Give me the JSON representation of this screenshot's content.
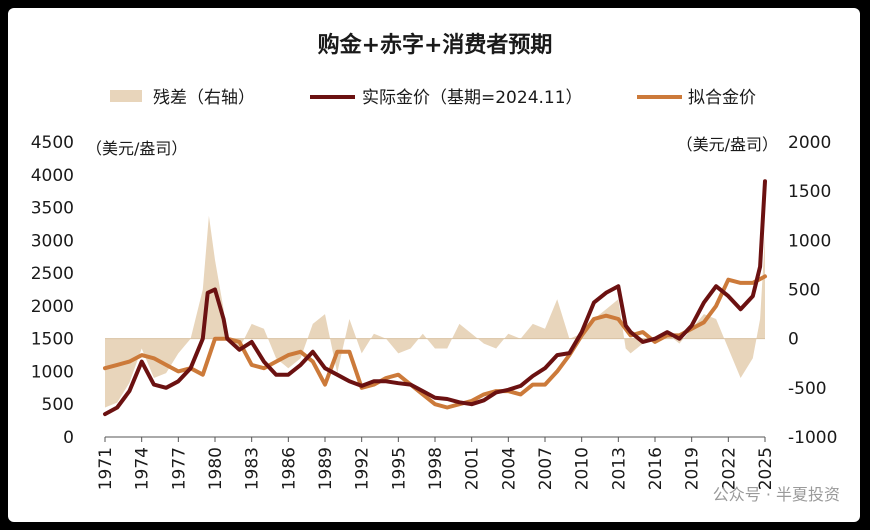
{
  "chart_data": {
    "type": "line",
    "title": "购金+赤字+消费者预期",
    "left_unit": "（美元/盎司）",
    "right_unit": "（美元/盎司）",
    "left_axis": {
      "min": 0,
      "max": 4500,
      "ticks": [
        "0",
        "500",
        "1000",
        "1500",
        "2000",
        "2500",
        "3000",
        "3500",
        "4000",
        "4500"
      ]
    },
    "right_axis": {
      "min": -1000,
      "max": 2000,
      "ticks": [
        "-1000",
        "-500",
        "0",
        "500",
        "1000",
        "1500",
        "2000"
      ]
    },
    "x_ticks": [
      "1971",
      "1974",
      "1977",
      "1980",
      "1983",
      "1986",
      "1989",
      "1992",
      "1995",
      "1998",
      "2001",
      "2004",
      "2007",
      "2010",
      "2013",
      "2016",
      "2019",
      "2022",
      "2025"
    ],
    "legend": [
      {
        "name": "残差（右轴）",
        "color": "#e8d5bb",
        "kind": "area"
      },
      {
        "name": "实际金价（基期=2024.11）",
        "color": "#6b1111",
        "kind": "line"
      },
      {
        "name": "拟合金价",
        "color": "#cc7a3a",
        "kind": "line"
      }
    ],
    "series": [
      {
        "name": "实际金价（基期=2024.11）",
        "axis": "left",
        "points": [
          [
            1971,
            350
          ],
          [
            1972,
            450
          ],
          [
            1973,
            700
          ],
          [
            1974,
            1150
          ],
          [
            1975,
            800
          ],
          [
            1976,
            750
          ],
          [
            1977,
            850
          ],
          [
            1978,
            1050
          ],
          [
            1979,
            1500
          ],
          [
            1979.4,
            2200
          ],
          [
            1980,
            2250
          ],
          [
            1980.7,
            1800
          ],
          [
            1981,
            1500
          ],
          [
            1982,
            1330
          ],
          [
            1983,
            1450
          ],
          [
            1984,
            1150
          ],
          [
            1985,
            950
          ],
          [
            1986,
            950
          ],
          [
            1987,
            1100
          ],
          [
            1988,
            1300
          ],
          [
            1989,
            1050
          ],
          [
            1990,
            950
          ],
          [
            1991,
            850
          ],
          [
            1992,
            780
          ],
          [
            1993,
            850
          ],
          [
            1994,
            850
          ],
          [
            1995,
            820
          ],
          [
            1996,
            800
          ],
          [
            1997,
            700
          ],
          [
            1998,
            600
          ],
          [
            1999,
            580
          ],
          [
            2000,
            530
          ],
          [
            2001,
            500
          ],
          [
            2002,
            560
          ],
          [
            2003,
            680
          ],
          [
            2004,
            720
          ],
          [
            2005,
            780
          ],
          [
            2006,
            930
          ],
          [
            2007,
            1050
          ],
          [
            2008,
            1250
          ],
          [
            2009,
            1280
          ],
          [
            2010,
            1600
          ],
          [
            2011,
            2050
          ],
          [
            2012,
            2200
          ],
          [
            2013,
            2300
          ],
          [
            2013.6,
            1700
          ],
          [
            2014,
            1600
          ],
          [
            2015,
            1450
          ],
          [
            2016,
            1500
          ],
          [
            2017,
            1600
          ],
          [
            2018,
            1500
          ],
          [
            2019,
            1700
          ],
          [
            2020,
            2050
          ],
          [
            2021,
            2300
          ],
          [
            2022,
            2150
          ],
          [
            2023,
            1950
          ],
          [
            2024,
            2150
          ],
          [
            2024.6,
            2600
          ],
          [
            2025,
            3900
          ]
        ]
      },
      {
        "name": "拟合金价",
        "axis": "left",
        "points": [
          [
            1971,
            1050
          ],
          [
            1972,
            1100
          ],
          [
            1973,
            1150
          ],
          [
            1974,
            1250
          ],
          [
            1975,
            1200
          ],
          [
            1976,
            1100
          ],
          [
            1977,
            1000
          ],
          [
            1978,
            1050
          ],
          [
            1979,
            950
          ],
          [
            1980,
            1500
          ],
          [
            1981,
            1500
          ],
          [
            1982,
            1450
          ],
          [
            1983,
            1100
          ],
          [
            1984,
            1050
          ],
          [
            1985,
            1150
          ],
          [
            1986,
            1250
          ],
          [
            1987,
            1300
          ],
          [
            1988,
            1150
          ],
          [
            1989,
            800
          ],
          [
            1990,
            1300
          ],
          [
            1991,
            1300
          ],
          [
            1992,
            750
          ],
          [
            1993,
            800
          ],
          [
            1994,
            900
          ],
          [
            1995,
            950
          ],
          [
            1996,
            800
          ],
          [
            1997,
            650
          ],
          [
            1998,
            500
          ],
          [
            1999,
            450
          ],
          [
            2000,
            500
          ],
          [
            2001,
            550
          ],
          [
            2002,
            650
          ],
          [
            2003,
            700
          ],
          [
            2004,
            700
          ],
          [
            2005,
            650
          ],
          [
            2006,
            800
          ],
          [
            2007,
            800
          ],
          [
            2008,
            1000
          ],
          [
            2009,
            1250
          ],
          [
            2010,
            1550
          ],
          [
            2011,
            1800
          ],
          [
            2012,
            1850
          ],
          [
            2013,
            1800
          ],
          [
            2014,
            1550
          ],
          [
            2015,
            1600
          ],
          [
            2016,
            1450
          ],
          [
            2017,
            1550
          ],
          [
            2018,
            1550
          ],
          [
            2019,
            1650
          ],
          [
            2020,
            1750
          ],
          [
            2021,
            2000
          ],
          [
            2022,
            2400
          ],
          [
            2023,
            2350
          ],
          [
            2024,
            2350
          ],
          [
            2025,
            2450
          ]
        ]
      },
      {
        "name": "残差（右轴）",
        "axis": "right",
        "points": [
          [
            1971,
            -700
          ],
          [
            1972,
            -650
          ],
          [
            1973,
            -450
          ],
          [
            1974,
            -100
          ],
          [
            1975,
            -400
          ],
          [
            1976,
            -350
          ],
          [
            1977,
            -150
          ],
          [
            1978,
            0
          ],
          [
            1979,
            500
          ],
          [
            1979.5,
            1250
          ],
          [
            1980,
            800
          ],
          [
            1980.7,
            300
          ],
          [
            1981,
            0
          ],
          [
            1982,
            -100
          ],
          [
            1983,
            150
          ],
          [
            1984,
            100
          ],
          [
            1985,
            -200
          ],
          [
            1986,
            -300
          ],
          [
            1987,
            -200
          ],
          [
            1988,
            150
          ],
          [
            1989,
            250
          ],
          [
            1990,
            -350
          ],
          [
            1991,
            200
          ],
          [
            1992,
            -150
          ],
          [
            1993,
            50
          ],
          [
            1994,
            0
          ],
          [
            1995,
            -150
          ],
          [
            1996,
            -100
          ],
          [
            1997,
            50
          ],
          [
            1998,
            -100
          ],
          [
            1999,
            -100
          ],
          [
            2000,
            150
          ],
          [
            2001,
            50
          ],
          [
            2002,
            -50
          ],
          [
            2003,
            -100
          ],
          [
            2004,
            50
          ],
          [
            2005,
            0
          ],
          [
            2006,
            150
          ],
          [
            2007,
            100
          ],
          [
            2008,
            400
          ],
          [
            2009,
            0
          ],
          [
            2010,
            50
          ],
          [
            2011,
            200
          ],
          [
            2012,
            300
          ],
          [
            2013,
            400
          ],
          [
            2013.6,
            -100
          ],
          [
            2014,
            -150
          ],
          [
            2015,
            -50
          ],
          [
            2016,
            0
          ],
          [
            2017,
            50
          ],
          [
            2018,
            -50
          ],
          [
            2019,
            100
          ],
          [
            2020,
            250
          ],
          [
            2021,
            200
          ],
          [
            2022,
            -100
          ],
          [
            2023,
            -400
          ],
          [
            2024,
            -200
          ],
          [
            2024.6,
            200
          ],
          [
            2025,
            1050
          ]
        ]
      }
    ],
    "watermark": "公众号 · 半夏投资"
  }
}
